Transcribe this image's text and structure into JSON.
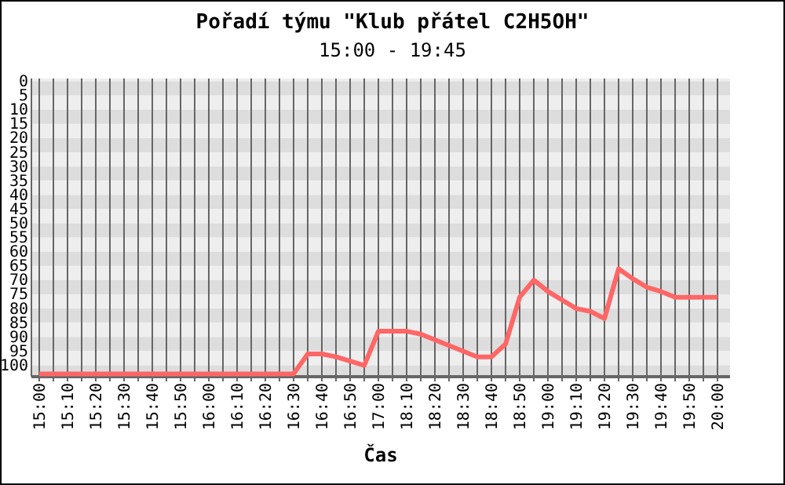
{
  "chart_data": {
    "type": "line",
    "title": "Pořadí týmu \"Klub přátel C2H5OH\"",
    "subtitle": "15:00 - 19:45",
    "xlabel": "Čas",
    "categories": [
      "15:00",
      null,
      "15:10",
      null,
      "15:20",
      null,
      "15:30",
      null,
      "15:40",
      null,
      "15:50",
      null,
      "16:00",
      null,
      "16:10",
      null,
      "16:20",
      null,
      "16:30",
      null,
      "16:40",
      null,
      "16:50",
      null,
      "17:00",
      null,
      "18:10",
      null,
      "18:20",
      null,
      "18:30",
      null,
      "18:40",
      null,
      "18:50",
      null,
      "19:00",
      null,
      "19:10",
      null,
      "19:20",
      null,
      "19:30",
      null,
      "19:40",
      null,
      "19:50",
      null,
      "20:00"
    ],
    "series": [
      {
        "color": "#ff6666",
        "values": [
          103,
          103,
          103,
          103,
          103,
          103,
          103,
          103,
          103,
          103,
          103,
          103,
          103,
          103,
          103,
          103,
          103,
          103,
          103,
          96,
          96,
          97,
          98.5,
          100,
          88,
          88,
          88,
          89,
          91,
          93,
          95,
          97,
          97,
          92.5,
          76,
          70,
          74,
          77,
          80,
          81,
          83.5,
          66,
          69.5,
          72.5,
          74,
          76,
          76,
          76,
          76
        ]
      }
    ],
    "ylim": [
      104,
      -1
    ],
    "yticks": [
      0,
      5,
      10,
      15,
      20,
      25,
      30,
      35,
      40,
      45,
      50,
      55,
      60,
      65,
      70,
      75,
      80,
      85,
      90,
      95,
      100
    ],
    "grid": true,
    "line_style": "solid",
    "marker": "none"
  }
}
